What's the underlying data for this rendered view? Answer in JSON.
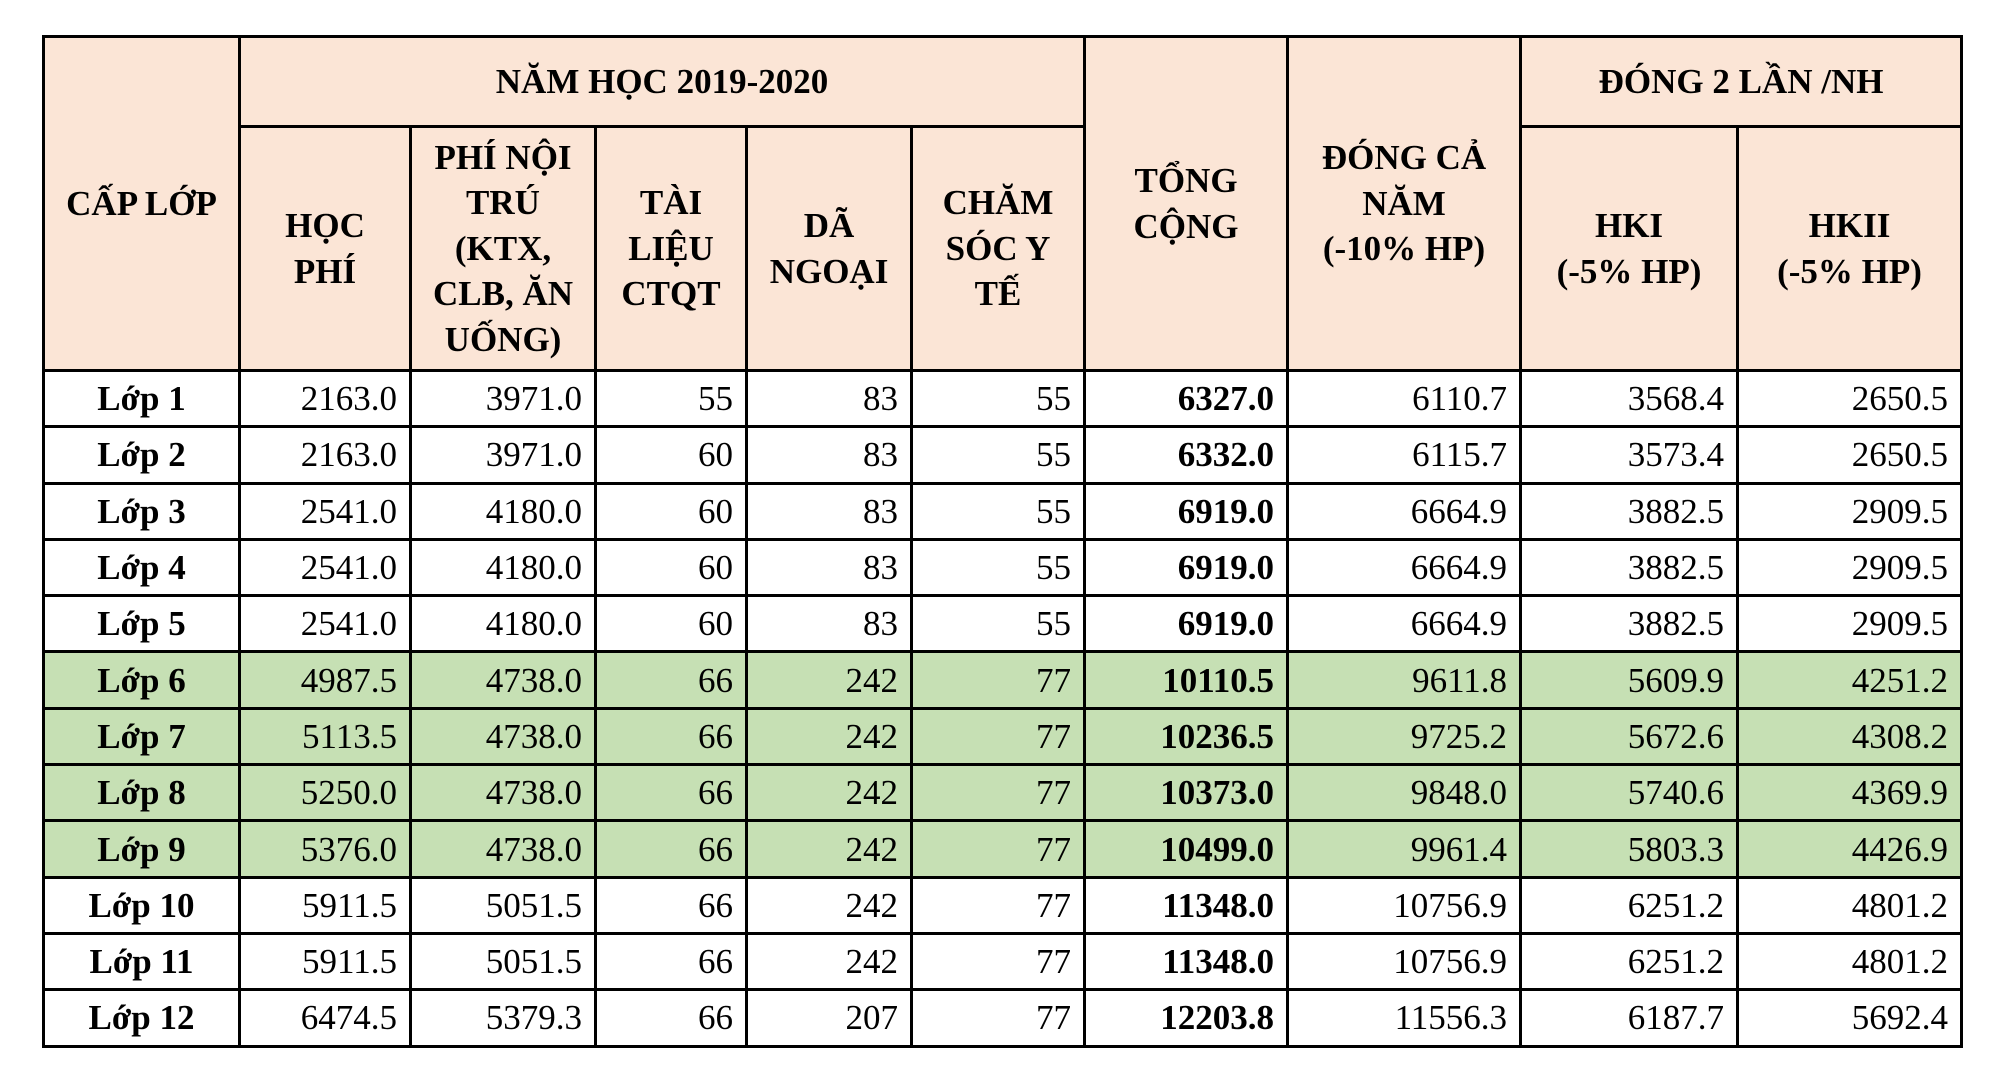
{
  "header": {
    "grade": "CẤP LỚP",
    "year_group": "NĂM HỌC 2019-2020",
    "tuition": "HỌC\nPHÍ",
    "boarding": "PHÍ NỘI\nTRÚ\n(KTX,\nCLB, ĂN\nUỐNG)",
    "materials": "TÀI\nLIỆU\nCTQT",
    "field_trip": "DÃ\nNGOẠI",
    "medical": "CHĂM\nSÓC Y\nTẾ",
    "total": "TỔNG\nCỘNG",
    "full_year": "ĐÓNG CẢ\nNĂM\n(-10% HP)",
    "two_payments": "ĐÓNG 2 LẦN /NH",
    "hk1": "HKI\n(-5% HP)",
    "hk2": "HKII\n(-5% HP)"
  },
  "highlight_color": "#c6e0b4",
  "header_color": "#fbe5d6",
  "highlighted_rows": [
    5,
    6,
    7,
    8
  ],
  "rows": [
    [
      "Lớp 1",
      "2163.0",
      "3971.0",
      "55",
      "83",
      "55",
      "6327.0",
      "6110.7",
      "3568.4",
      "2650.5"
    ],
    [
      "Lớp 2",
      "2163.0",
      "3971.0",
      "60",
      "83",
      "55",
      "6332.0",
      "6115.7",
      "3573.4",
      "2650.5"
    ],
    [
      "Lớp 3",
      "2541.0",
      "4180.0",
      "60",
      "83",
      "55",
      "6919.0",
      "6664.9",
      "3882.5",
      "2909.5"
    ],
    [
      "Lớp 4",
      "2541.0",
      "4180.0",
      "60",
      "83",
      "55",
      "6919.0",
      "6664.9",
      "3882.5",
      "2909.5"
    ],
    [
      "Lớp 5",
      "2541.0",
      "4180.0",
      "60",
      "83",
      "55",
      "6919.0",
      "6664.9",
      "3882.5",
      "2909.5"
    ],
    [
      "Lớp 6",
      "4987.5",
      "4738.0",
      "66",
      "242",
      "77",
      "10110.5",
      "9611.8",
      "5609.9",
      "4251.2"
    ],
    [
      "Lớp 7",
      "5113.5",
      "4738.0",
      "66",
      "242",
      "77",
      "10236.5",
      "9725.2",
      "5672.6",
      "4308.2"
    ],
    [
      "Lớp 8",
      "5250.0",
      "4738.0",
      "66",
      "242",
      "77",
      "10373.0",
      "9848.0",
      "5740.6",
      "4369.9"
    ],
    [
      "Lớp 9",
      "5376.0",
      "4738.0",
      "66",
      "242",
      "77",
      "10499.0",
      "9961.4",
      "5803.3",
      "4426.9"
    ],
    [
      "Lớp 10",
      "5911.5",
      "5051.5",
      "66",
      "242",
      "77",
      "11348.0",
      "10756.9",
      "6251.2",
      "4801.2"
    ],
    [
      "Lớp 11",
      "5911.5",
      "5051.5",
      "66",
      "242",
      "77",
      "11348.0",
      "10756.9",
      "6251.2",
      "4801.2"
    ],
    [
      "Lớp 12",
      "6474.5",
      "5379.3",
      "66",
      "207",
      "77",
      "12203.8",
      "11556.3",
      "6187.7",
      "5692.4"
    ]
  ]
}
